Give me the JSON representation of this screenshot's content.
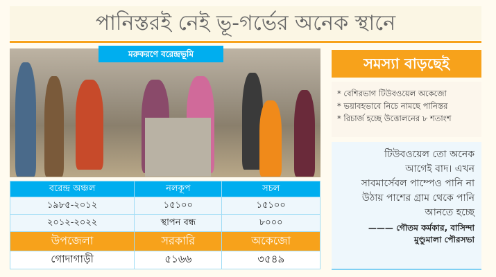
{
  "headline": "পানিস্তরই নেই ভূ-গর্ভের অনেক স্থানে",
  "photo": {
    "caption": "মরুকরণে বরেন্দ্রভূমি"
  },
  "sidebar": {
    "title": "সমস্যা বাড়ছেই",
    "bullets": [
      "* বেশিরভাগ টিউবওয়েল অকেজো",
      "* ভয়াবহভাবে নিচে নামছে পানিস্তর",
      "* রিচার্জ হচ্ছে উত্তোলনের ৮ শতাংশ"
    ]
  },
  "quote": {
    "lines": [
      "টিউবওয়েল তো অনেক",
      "আগেই বাদ। এখন",
      "সাবমার্সেবল পাম্পেও পানি না",
      "উঠায় পাশের গ্রাম থেকে পানি",
      "আনতে হচ্ছে"
    ],
    "author": "——— গৌতম কর্মকার, বাসিন্দা",
    "place": "মুণ্ডুমালা পৌরসভা"
  },
  "table": {
    "headers": [
      "বরেন্দ্র অঞ্চল",
      "নলকূপ",
      "সচল"
    ],
    "rows": [
      [
        "১৯৮৫-২০১২",
        "১৫১০০",
        "১৫১০০"
      ],
      [
        "২০১২-২০২২",
        "স্থাপন বন্ধ",
        "৮০০০"
      ]
    ],
    "headers2": [
      "উপজেলা",
      "সরকারি",
      "অকেজো"
    ],
    "rows2": [
      [
        "গোদাগাড়ী",
        "৫১৬৬",
        "৩৫৪৯"
      ]
    ]
  },
  "colors": {
    "accent": "#f7a21b",
    "blue": "#00aeef"
  }
}
